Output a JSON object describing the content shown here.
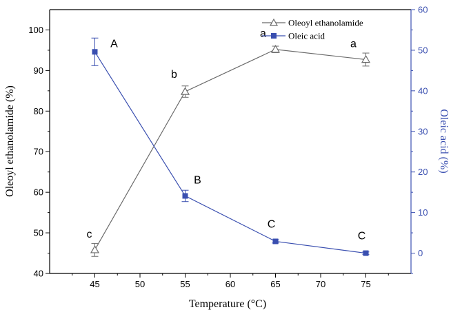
{
  "chart_data": {
    "type": "line",
    "x": [
      45,
      55,
      65,
      75
    ],
    "xlabel": "Temperature (°C)",
    "ylabel_left": "Oleoyl ethanolamide (%)",
    "ylabel_right": "Oleic acid (%)",
    "xlim": [
      40,
      80
    ],
    "ylim_left": [
      40,
      105
    ],
    "ylim_right": [
      -5,
      60
    ],
    "x_ticks": [
      "45",
      "50",
      "55",
      "60",
      "65",
      "70",
      "75"
    ],
    "y_left_ticks": [
      "40",
      "50",
      "60",
      "70",
      "80",
      "90",
      "100"
    ],
    "y_right_ticks": [
      "0",
      "10",
      "20",
      "30",
      "40",
      "50",
      "60"
    ],
    "grid": false,
    "legend_position": "top-right",
    "series": [
      {
        "name": "Oleoyl ethanolamide",
        "axis": "left",
        "marker": "open-triangle",
        "color": "#6b6b6b",
        "values": [
          45.8,
          84.8,
          95.2,
          92.7
        ],
        "errors": [
          1.6,
          1.4,
          0.8,
          1.6
        ],
        "labels": [
          "c",
          "b",
          "a",
          "a"
        ]
      },
      {
        "name": "Oleic acid",
        "axis": "right",
        "marker": "filled-square",
        "color": "#3a4fb0",
        "values": [
          49.6,
          14.1,
          2.9,
          0.0
        ],
        "errors": [
          3.4,
          1.4,
          0.4,
          0.3
        ],
        "labels": [
          "A",
          "B",
          "C",
          "C"
        ]
      }
    ],
    "colors": {
      "left_axis": "#000000",
      "right_axis": "#3a4fb0"
    }
  }
}
